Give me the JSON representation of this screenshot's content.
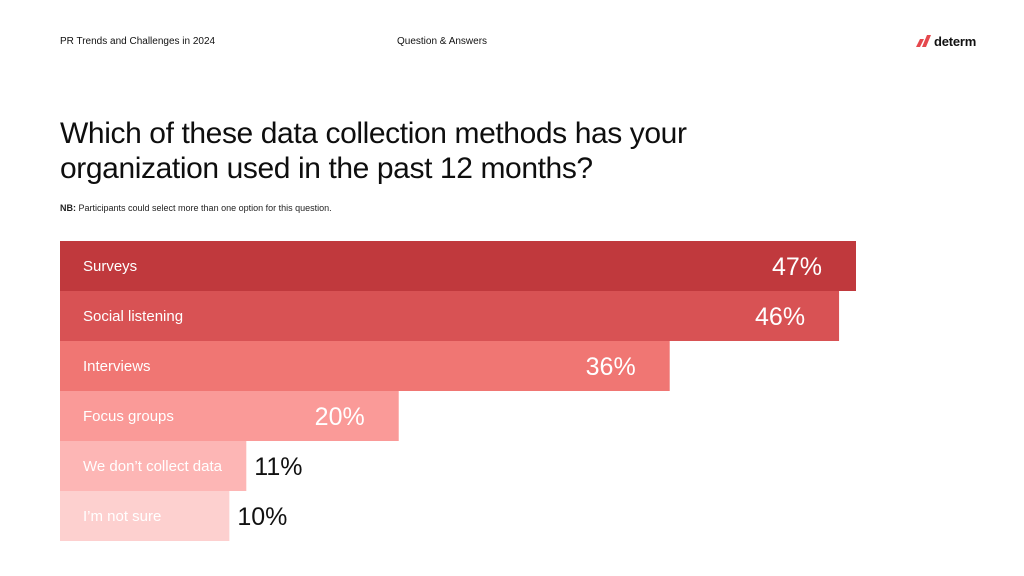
{
  "header": {
    "report_title": "PR Trends and Challenges in 2024",
    "section_label": "Question & Answers",
    "brand": "determ"
  },
  "question": {
    "text": "Which of these data collection methods has your organization used in the past 12 months?",
    "note_label": "NB:",
    "note_text": " Participants could select more than one option for this question."
  },
  "chart_data": {
    "type": "bar",
    "orientation": "horizontal",
    "unit": "%",
    "categories": [
      "Surveys",
      "Social listening",
      "Interviews",
      "Focus groups",
      "We don’t collect data",
      "I’m not sure"
    ],
    "values": [
      47,
      46,
      36,
      20,
      11,
      10
    ],
    "value_labels": [
      "47%",
      "46%",
      "36%",
      "20%",
      "11%",
      "10%"
    ],
    "colors": [
      "#c0393d",
      "#d85254",
      "#f07673",
      "#fa9a98",
      "#fdb6b5",
      "#fdd0cf"
    ],
    "grid": false,
    "legend": "none"
  },
  "colors": {
    "brand_accent": "#e5484d",
    "text": "#111111"
  }
}
